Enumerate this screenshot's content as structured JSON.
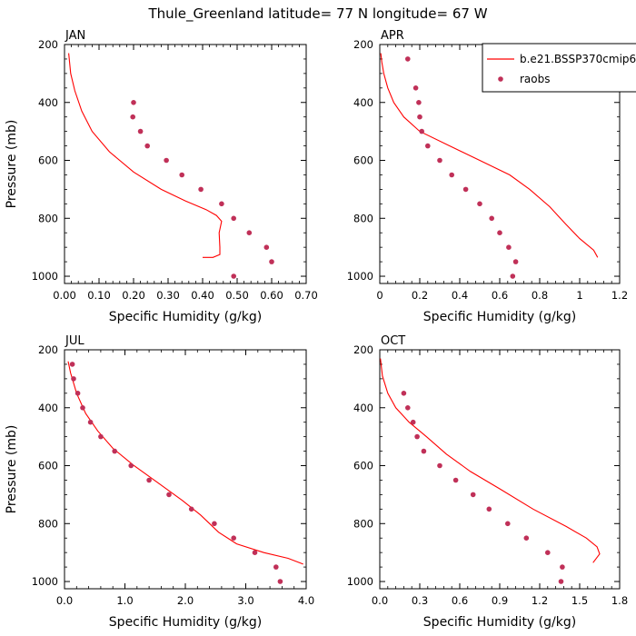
{
  "title": "Thule_Greenland  latitude= 77 N longitude= 67 W",
  "legend": {
    "model_label": "b.e21.BSSP370cmip6",
    "obs_label": "raobs",
    "model_color": "#ff0000",
    "obs_color": "#c03058"
  },
  "chart_data": [
    {
      "type": "line",
      "panel_label": "JAN",
      "xlabel": "Specific Humidity (g/kg)",
      "ylabel": "Pressure (mb)",
      "xlim": [
        0,
        0.7
      ],
      "xticks": [
        0,
        0.1,
        0.2,
        0.3,
        0.4,
        0.5,
        0.6,
        0.7
      ],
      "xtick_labels": [
        "0.00",
        "0.10",
        "0.20",
        "0.30",
        "0.40",
        "0.50",
        "0.60",
        "0.70"
      ],
      "ylim": [
        200,
        1025
      ],
      "yticks": [
        200,
        400,
        600,
        800,
        1000
      ],
      "ytick_labels": [
        "200",
        "400",
        "600",
        "800",
        "1000"
      ],
      "series": [
        {
          "name": "b.e21.BSSP370cmip6",
          "style": "line",
          "x": [
            0.012,
            0.018,
            0.03,
            0.05,
            0.08,
            0.13,
            0.2,
            0.28,
            0.35,
            0.41,
            0.44,
            0.455,
            0.448,
            0.45,
            0.45,
            0.43,
            0.4
          ],
          "y": [
            230,
            300,
            360,
            430,
            500,
            570,
            640,
            700,
            740,
            770,
            790,
            810,
            850,
            900,
            925,
            935,
            935
          ]
        },
        {
          "name": "raobs",
          "style": "markers",
          "x": [
            0.2,
            0.198,
            0.22,
            0.24,
            0.295,
            0.34,
            0.395,
            0.455,
            0.49,
            0.535,
            0.585,
            0.6,
            0.49
          ],
          "y": [
            400,
            450,
            500,
            550,
            600,
            650,
            700,
            750,
            800,
            850,
            900,
            950,
            1000
          ]
        }
      ]
    },
    {
      "type": "line",
      "panel_label": "APR",
      "xlabel": "Specific Humidity (g/kg)",
      "ylabel": "",
      "xlim": [
        0,
        1.2
      ],
      "xticks": [
        0,
        0.2,
        0.4,
        0.6,
        0.8,
        1.0,
        1.2
      ],
      "xtick_labels": [
        "0",
        "0.2",
        "0.4",
        "0.6",
        "0.8",
        "1",
        "1.2"
      ],
      "ylim": [
        200,
        1025
      ],
      "yticks": [
        200,
        400,
        600,
        800,
        1000
      ],
      "ytick_labels": [
        "200",
        "400",
        "600",
        "800",
        "1000"
      ],
      "series": [
        {
          "name": "b.e21.BSSP370cmip6",
          "style": "line",
          "x": [
            0.005,
            0.01,
            0.02,
            0.04,
            0.07,
            0.12,
            0.2,
            0.35,
            0.5,
            0.65,
            0.75,
            0.85,
            0.93,
            1.0,
            1.07,
            1.09
          ],
          "y": [
            230,
            260,
            300,
            350,
            400,
            450,
            500,
            550,
            600,
            650,
            700,
            760,
            820,
            870,
            910,
            935
          ]
        },
        {
          "name": "raobs",
          "style": "markers",
          "x": [
            0.14,
            0.18,
            0.195,
            0.2,
            0.21,
            0.24,
            0.3,
            0.36,
            0.43,
            0.5,
            0.56,
            0.6,
            0.645,
            0.68,
            0.665
          ],
          "y": [
            250,
            350,
            400,
            450,
            500,
            550,
            600,
            650,
            700,
            750,
            800,
            850,
            900,
            950,
            1000
          ]
        }
      ]
    },
    {
      "type": "line",
      "panel_label": "JUL",
      "xlabel": "Specific Humidity (g/kg)",
      "ylabel": "Pressure (mb)",
      "xlim": [
        0,
        4.0
      ],
      "xticks": [
        0,
        1,
        2,
        3,
        4
      ],
      "xtick_labels": [
        "0.0",
        "1.0",
        "2.0",
        "3.0",
        "4.0"
      ],
      "ylim": [
        200,
        1025
      ],
      "yticks": [
        200,
        400,
        600,
        800,
        1000
      ],
      "ytick_labels": [
        "200",
        "400",
        "600",
        "800",
        "1000"
      ],
      "series": [
        {
          "name": "b.e21.BSSP370cmip6",
          "style": "line",
          "x": [
            0.06,
            0.1,
            0.2,
            0.35,
            0.55,
            0.8,
            1.15,
            1.55,
            1.95,
            2.25,
            2.55,
            2.85,
            3.3,
            3.7,
            3.95
          ],
          "y": [
            240,
            280,
            350,
            420,
            480,
            540,
            600,
            660,
            720,
            770,
            830,
            870,
            900,
            920,
            940
          ]
        },
        {
          "name": "raobs",
          "style": "markers",
          "x": [
            0.13,
            0.15,
            0.22,
            0.3,
            0.43,
            0.6,
            0.83,
            1.1,
            1.4,
            1.73,
            2.1,
            2.48,
            2.8,
            3.15,
            3.5,
            3.57
          ],
          "y": [
            250,
            300,
            350,
            400,
            450,
            500,
            550,
            600,
            650,
            700,
            750,
            800,
            850,
            900,
            950,
            1000
          ]
        }
      ]
    },
    {
      "type": "line",
      "panel_label": "OCT",
      "xlabel": "Specific Humidity (g/kg)",
      "ylabel": "",
      "xlim": [
        0,
        1.8
      ],
      "xticks": [
        0,
        0.3,
        0.6,
        0.9,
        1.2,
        1.5,
        1.8
      ],
      "xtick_labels": [
        "0.0",
        "0.3",
        "0.6",
        "0.9",
        "1.2",
        "1.5",
        "1.8"
      ],
      "ylim": [
        200,
        1025
      ],
      "yticks": [
        200,
        400,
        600,
        800,
        1000
      ],
      "ytick_labels": [
        "200",
        "400",
        "600",
        "800",
        "1000"
      ],
      "series": [
        {
          "name": "b.e21.BSSP370cmip6",
          "style": "line",
          "x": [
            0.005,
            0.02,
            0.06,
            0.12,
            0.22,
            0.35,
            0.5,
            0.68,
            0.9,
            1.15,
            1.4,
            1.55,
            1.63,
            1.65,
            1.6
          ],
          "y": [
            230,
            290,
            350,
            400,
            450,
            500,
            560,
            620,
            680,
            750,
            810,
            850,
            880,
            905,
            935
          ]
        },
        {
          "name": "raobs",
          "style": "markers",
          "x": [
            0.18,
            0.21,
            0.25,
            0.28,
            0.33,
            0.45,
            0.57,
            0.7,
            0.82,
            0.96,
            1.1,
            1.26,
            1.37,
            1.36
          ],
          "y": [
            350,
            400,
            450,
            500,
            550,
            600,
            650,
            700,
            750,
            800,
            850,
            900,
            950,
            1000
          ]
        }
      ]
    }
  ]
}
